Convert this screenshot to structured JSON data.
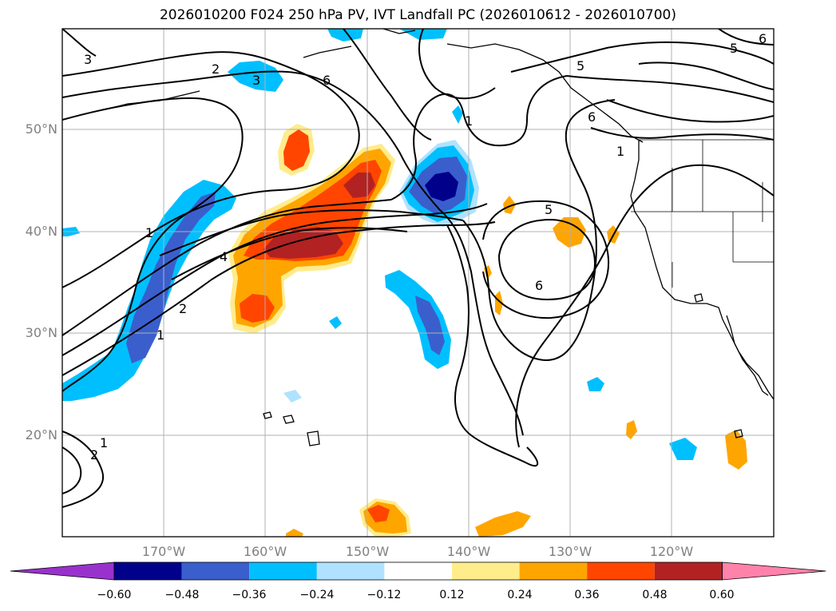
{
  "title": "2026010200 F024 250 hPa PV, IVT Landfall PC (2026010612 - 2026010700)",
  "lon_labels": [
    "170°W",
    "160°W",
    "150°W",
    "140°W",
    "130°W",
    "120°W"
  ],
  "lat_labels": [
    "50°N",
    "40°N",
    "30°N",
    "20°N"
  ],
  "contour_labels": [
    "1",
    "2",
    "4",
    "5",
    "6",
    "5",
    "6",
    "1",
    "2",
    "5",
    "6",
    "6",
    "1",
    "1",
    "2",
    "1",
    "3",
    "3"
  ],
  "colorbar": {
    "ticks": [
      "−0.60",
      "−0.48",
      "−0.36",
      "−0.24",
      "−0.12",
      "0.12",
      "0.24",
      "0.36",
      "0.48",
      "0.60"
    ],
    "colors": [
      "#9932cc",
      "#00008b",
      "#3a5fcd",
      "#00bfff",
      "#b0e2ff",
      "#ffffff",
      "#ffec8b",
      "#ffa500",
      "#ff4500",
      "#b22222",
      "#ff82ab"
    ]
  },
  "colors": {
    "grid": "#b0b0b0",
    "contour": "#000000",
    "tick_text": "#808080"
  }
}
